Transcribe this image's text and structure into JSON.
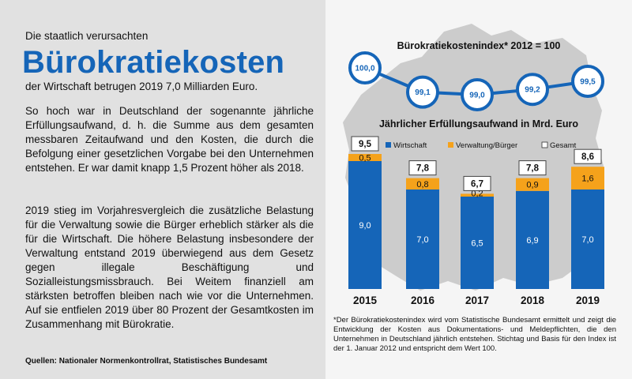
{
  "left": {
    "intro": "Die staatlich verursachten",
    "headline": "Bürokratiekosten",
    "subline": "der Wirtschaft betrugen 2019 7,0 Milliarden Euro.",
    "para1": "So hoch war in Deutschland der sogenannte jährliche Erfüllungsaufwand, d. h. die Summe aus dem gesamten messbaren Zeitaufwand und den Kosten, die durch die Befolgung einer gesetzlichen Vorgabe bei den Unternehmen entstehen. Er war damit knapp 1,5 Prozent höher als 2018.",
    "para2": "2019 stieg im Vorjahresvergleich die zusätzliche Belastung für die Verwaltung sowie die Bürger erheblich stärker als die für die Wirtschaft. Die höhere Belastung insbesondere der Verwaltung entstand 2019 überwiegend aus dem Gesetz gegen illegale Beschäftigung und Sozialleistungsmissbrauch. Bei Weitem finanziell am stärksten betroffen bleiben nach wie vor die Unternehmen. Auf sie entfielen 2019 über 80 Prozent der Gesamtkosten im Zusammenhang mit Bürokratie.",
    "sources": "Quellen: Nationaler Normenkontrollrat, Statistisches Bundesamt"
  },
  "footnote": "*Der Bürokratiekostenindex wird vom Statistische Bundesamt ermittelt und zeigt die Entwicklung der Kosten aus Dokumentations- und Meldepflichten, die den Unternehmen in Deutschland jährlich entstehen. Stichtag und Basis für den Index ist der 1. Januar 2012 und entspricht dem Wert 100.",
  "colors": {
    "wirtschaft": "#1565b8",
    "verwaltung": "#f5a21b",
    "index_line": "#1565b8",
    "map": "#c8c8c8"
  },
  "chart_data": [
    {
      "type": "line",
      "title": "Bürokratiekostenindex* 2012 = 100",
      "x": [
        "2015",
        "2016",
        "2017",
        "2018",
        "2019"
      ],
      "series": [
        {
          "values": [
            100.0,
            99.1,
            99.0,
            99.2,
            99.5
          ]
        }
      ],
      "labels": [
        "100,0",
        "99,1",
        "99,0",
        "99,2",
        "99,5"
      ]
    },
    {
      "type": "bar",
      "stacked": true,
      "title": "Jährlicher Erfüllungsaufwand in Mrd. Euro",
      "categories": [
        "2015",
        "2016",
        "2017",
        "2018",
        "2019"
      ],
      "series": [
        {
          "name": "Wirtschaft",
          "values": [
            9.0,
            7.0,
            6.5,
            6.9,
            7.0
          ],
          "labels": [
            "9,0",
            "7,0",
            "6,5",
            "6,9",
            "7,0"
          ]
        },
        {
          "name": "Verwaltung/Bürger",
          "values": [
            0.5,
            0.8,
            0.2,
            0.9,
            1.6
          ],
          "labels": [
            "0,5",
            "0,8",
            "0,2",
            "0,9",
            "1,6"
          ]
        }
      ],
      "totals": {
        "name": "Gesamt",
        "values": [
          9.5,
          7.8,
          6.7,
          7.8,
          8.6
        ],
        "labels": [
          "9,5",
          "7,8",
          "6,7",
          "7,8",
          "8,6"
        ]
      },
      "ylim": [
        0,
        10
      ],
      "legend": "top"
    }
  ]
}
